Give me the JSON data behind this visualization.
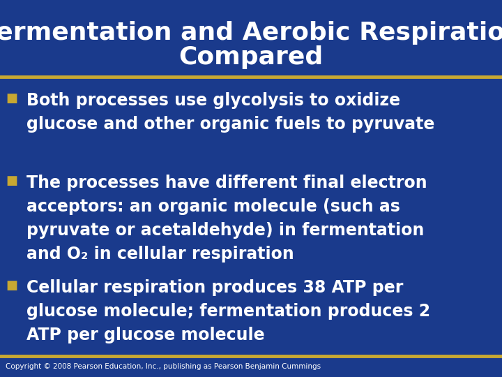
{
  "title_line1": "Fermentation and Aerobic Respiration",
  "title_line2": "Compared",
  "title_color": "#FFFFFF",
  "title_fontsize": 26,
  "bg_color": "#1a3a8c",
  "bg_gradient_bottom": "#0a1a5c",
  "separator_color": "#C8A832",
  "separator_linewidth": 3.5,
  "bullet_color": "#C8A832",
  "bullet_size": 13,
  "text_color": "#FFFFFF",
  "text_fontsize": 17,
  "copyright_text": "Copyright © 2008 Pearson Education, Inc., publishing as Pearson Benjamin Cummings",
  "copyright_fontsize": 7.5,
  "bullet_points": [
    {
      "lines": [
        "Both processes use glycolysis to oxidize",
        "glucose and other organic fuels to pyruvate"
      ]
    },
    {
      "lines": [
        "The processes have different final electron",
        "acceptors: an organic molecule (such as",
        "pyruvate or acetaldehyde) in fermentation",
        "and O₂ in cellular respiration"
      ]
    },
    {
      "lines": [
        "Cellular respiration produces 38 ATP per",
        "glucose molecule; fermentation produces 2",
        "ATP per glucose molecule"
      ]
    }
  ]
}
